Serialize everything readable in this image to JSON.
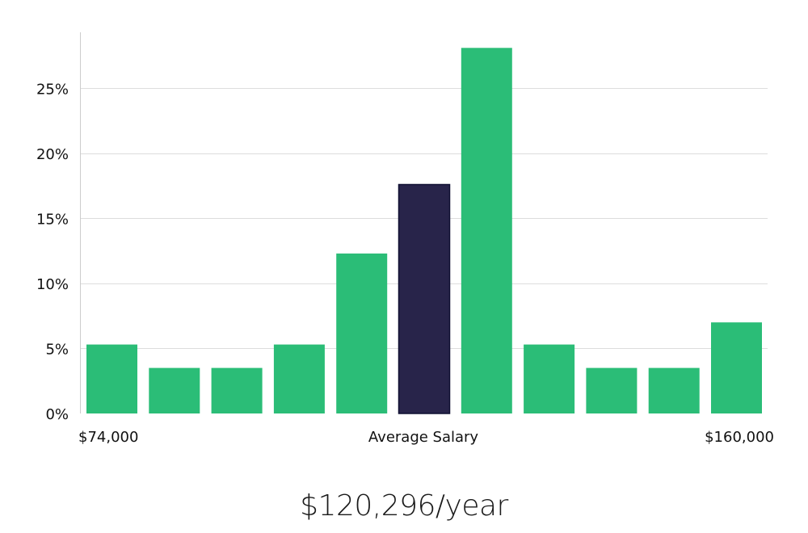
{
  "chart_data": {
    "type": "bar",
    "values": [
      5.3,
      3.5,
      3.5,
      5.3,
      12.3,
      17.6,
      28.1,
      5.3,
      3.5,
      3.5,
      7.0
    ],
    "highlight_index": 5,
    "ylim": [
      0,
      29.3
    ],
    "yticks": [
      0,
      5,
      10,
      15,
      20,
      25
    ],
    "ytick_labels": [
      "0%",
      "5%",
      "10%",
      "15%",
      "20%",
      "25%"
    ],
    "grid": true,
    "x_labels": {
      "min": "$74,000",
      "center": "Average Salary",
      "max": "$160,000"
    },
    "colors": {
      "bar": "#2bbd77",
      "highlight": "#28244a",
      "highlight_edge": "#111133",
      "grid": "#dddddd",
      "axis": "#cccccc"
    }
  },
  "salary": "$120,296/year"
}
